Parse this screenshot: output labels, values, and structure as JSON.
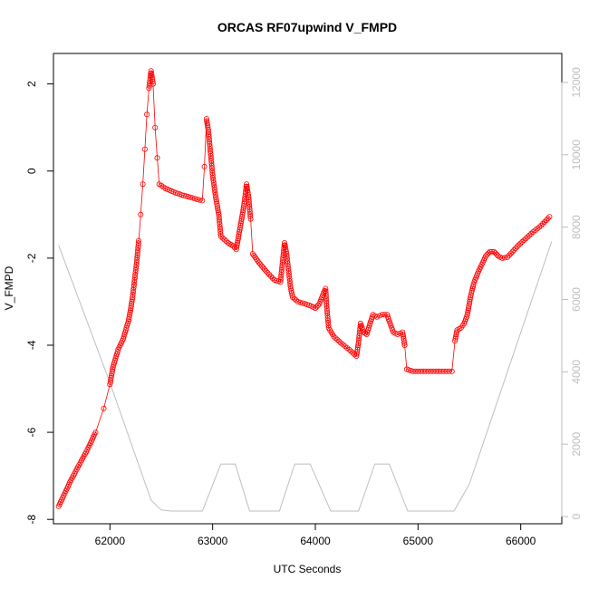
{
  "chart_data": {
    "type": "scatter",
    "title": "ORCAS RF07upwind V_FMPD",
    "xlabel": "UTC Seconds",
    "ylabel": "V_FMPD",
    "xlim": [
      61450,
      66400
    ],
    "ylim": [
      -8.1,
      2.7
    ],
    "y2lim": [
      -200,
      12800
    ],
    "x_ticks": [
      62000,
      63000,
      64000,
      65000,
      66000
    ],
    "y_ticks": [
      -8,
      -6,
      -4,
      -2,
      0,
      2
    ],
    "y2_ticks": [
      0,
      2000,
      4000,
      6000,
      8000,
      10000,
      12000
    ],
    "colors": {
      "primary": "#ff0000",
      "secondary": "#bebebe",
      "axis": "#000000"
    },
    "series": [
      {
        "role": "primary",
        "marker": "open-circle",
        "points": [
          [
            61500,
            -7.7
          ],
          [
            61560,
            -7.4
          ],
          [
            61620,
            -7.1
          ],
          [
            61700,
            -6.75
          ],
          [
            61780,
            -6.4
          ],
          [
            61860,
            -6.0
          ],
          [
            61940,
            -5.45
          ],
          [
            62000,
            -4.9
          ],
          [
            62030,
            -4.5
          ],
          [
            62080,
            -4.1
          ],
          [
            62130,
            -3.85
          ],
          [
            62160,
            -3.6
          ],
          [
            62180,
            -3.45
          ],
          [
            62200,
            -3.2
          ],
          [
            62220,
            -2.9
          ],
          [
            62240,
            -2.5
          ],
          [
            62260,
            -2.1
          ],
          [
            62280,
            -1.6
          ],
          [
            62300,
            -1.0
          ],
          [
            62320,
            -0.3
          ],
          [
            62340,
            0.5
          ],
          [
            62360,
            1.3
          ],
          [
            62380,
            1.9
          ],
          [
            62400,
            2.3
          ],
          [
            62420,
            2.0
          ],
          [
            62440,
            1.0
          ],
          [
            62460,
            0.3
          ],
          [
            62480,
            -0.3
          ],
          [
            62540,
            -0.4
          ],
          [
            62620,
            -0.48
          ],
          [
            62700,
            -0.55
          ],
          [
            62780,
            -0.6
          ],
          [
            62850,
            -0.65
          ],
          [
            62900,
            -0.68
          ],
          [
            62920,
            0.1
          ],
          [
            62940,
            1.2
          ],
          [
            62960,
            0.9
          ],
          [
            62980,
            0.4
          ],
          [
            63000,
            -0.1
          ],
          [
            63030,
            -0.6
          ],
          [
            63060,
            -1.0
          ],
          [
            63080,
            -1.5
          ],
          [
            63150,
            -1.65
          ],
          [
            63200,
            -1.72
          ],
          [
            63230,
            -1.8
          ],
          [
            63260,
            -1.4
          ],
          [
            63290,
            -1.0
          ],
          [
            63310,
            -0.7
          ],
          [
            63330,
            -0.3
          ],
          [
            63350,
            -0.6
          ],
          [
            63370,
            -1.1
          ],
          [
            63390,
            -1.9
          ],
          [
            63450,
            -2.1
          ],
          [
            63520,
            -2.3
          ],
          [
            63600,
            -2.5
          ],
          [
            63660,
            -2.55
          ],
          [
            63680,
            -2.1
          ],
          [
            63700,
            -1.65
          ],
          [
            63720,
            -1.9
          ],
          [
            63740,
            -2.3
          ],
          [
            63760,
            -2.7
          ],
          [
            63780,
            -2.9
          ],
          [
            63830,
            -3.0
          ],
          [
            63900,
            -3.05
          ],
          [
            63960,
            -3.1
          ],
          [
            64000,
            -3.15
          ],
          [
            64040,
            -3.05
          ],
          [
            64080,
            -2.8
          ],
          [
            64100,
            -2.7
          ],
          [
            64110,
            -3.1
          ],
          [
            64130,
            -3.6
          ],
          [
            64180,
            -3.8
          ],
          [
            64250,
            -3.95
          ],
          [
            64330,
            -4.1
          ],
          [
            64400,
            -4.25
          ],
          [
            64420,
            -3.95
          ],
          [
            64440,
            -3.5
          ],
          [
            64470,
            -3.7
          ],
          [
            64500,
            -3.75
          ],
          [
            64520,
            -3.6
          ],
          [
            64560,
            -3.3
          ],
          [
            64600,
            -3.35
          ],
          [
            64650,
            -3.3
          ],
          [
            64700,
            -3.3
          ],
          [
            64720,
            -3.45
          ],
          [
            64760,
            -3.7
          ],
          [
            64800,
            -3.75
          ],
          [
            64850,
            -3.7
          ],
          [
            64870,
            -4.0
          ],
          [
            64890,
            -4.55
          ],
          [
            64950,
            -4.6
          ],
          [
            65050,
            -4.6
          ],
          [
            65150,
            -4.6
          ],
          [
            65250,
            -4.6
          ],
          [
            65330,
            -4.6
          ],
          [
            65360,
            -3.9
          ],
          [
            65380,
            -3.65
          ],
          [
            65420,
            -3.6
          ],
          [
            65450,
            -3.5
          ],
          [
            65480,
            -3.3
          ],
          [
            65510,
            -2.9
          ],
          [
            65540,
            -2.6
          ],
          [
            65580,
            -2.35
          ],
          [
            65620,
            -2.15
          ],
          [
            65660,
            -1.95
          ],
          [
            65700,
            -1.85
          ],
          [
            65740,
            -1.85
          ],
          [
            65780,
            -1.95
          ],
          [
            65820,
            -2.0
          ],
          [
            65870,
            -1.98
          ],
          [
            65920,
            -1.85
          ],
          [
            65980,
            -1.7
          ],
          [
            66050,
            -1.55
          ],
          [
            66120,
            -1.4
          ],
          [
            66200,
            -1.25
          ],
          [
            66280,
            -1.05
          ]
        ]
      },
      {
        "role": "secondary",
        "style": "line",
        "points": [
          [
            61500,
            7500
          ],
          [
            62000,
            3700
          ],
          [
            62400,
            450
          ],
          [
            62500,
            180
          ],
          [
            62600,
            150
          ],
          [
            62900,
            150
          ],
          [
            63080,
            1450
          ],
          [
            63220,
            1450
          ],
          [
            63360,
            150
          ],
          [
            63650,
            150
          ],
          [
            63800,
            1450
          ],
          [
            63950,
            1450
          ],
          [
            64150,
            150
          ],
          [
            64420,
            150
          ],
          [
            64580,
            1450
          ],
          [
            64720,
            1450
          ],
          [
            64900,
            150
          ],
          [
            65350,
            150
          ],
          [
            65500,
            900
          ],
          [
            66300,
            7600
          ]
        ]
      }
    ]
  }
}
